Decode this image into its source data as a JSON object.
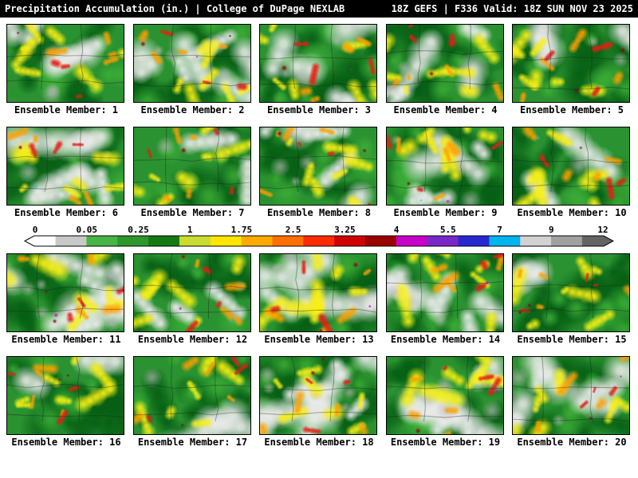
{
  "header": {
    "title_left": "Precipitation Accumulation (in.) | College of DuPage NEXLAB",
    "title_right": "18Z GEFS | F336 Valid: 18Z SUN NOV 23 2025"
  },
  "colorbar": {
    "ticks": [
      "0",
      "0.05",
      "0.25",
      "1",
      "1.75",
      "2.5",
      "3.25",
      "4",
      "5.5",
      "7",
      "9",
      "12"
    ],
    "colors": [
      "#ffffff",
      "#c8c8c8",
      "#46b446",
      "#2d962d",
      "#147814",
      "#c8dc32",
      "#ffe600",
      "#ffaa00",
      "#ff7000",
      "#ff2a00",
      "#d00000",
      "#9a0000",
      "#c800c8",
      "#7828c8",
      "#2828d2",
      "#00b4f0",
      "#d2d2d2",
      "#a0a0a0",
      "#646464"
    ]
  },
  "panels": [
    {
      "member": 1,
      "label": "Ensemble Member: 1"
    },
    {
      "member": 2,
      "label": "Ensemble Member: 2"
    },
    {
      "member": 3,
      "label": "Ensemble Member: 3"
    },
    {
      "member": 4,
      "label": "Ensemble Member: 4"
    },
    {
      "member": 5,
      "label": "Ensemble Member: 5"
    },
    {
      "member": 6,
      "label": "Ensemble Member: 6"
    },
    {
      "member": 7,
      "label": "Ensemble Member: 7"
    },
    {
      "member": 8,
      "label": "Ensemble Member: 8"
    },
    {
      "member": 9,
      "label": "Ensemble Member: 9"
    },
    {
      "member": 10,
      "label": "Ensemble Member: 10"
    },
    {
      "member": 11,
      "label": "Ensemble Member: 11"
    },
    {
      "member": 12,
      "label": "Ensemble Member: 12"
    },
    {
      "member": 13,
      "label": "Ensemble Member: 13"
    },
    {
      "member": 14,
      "label": "Ensemble Member: 14"
    },
    {
      "member": 15,
      "label": "Ensemble Member: 15"
    },
    {
      "member": 16,
      "label": "Ensemble Member: 16"
    },
    {
      "member": 17,
      "label": "Ensemble Member: 17"
    },
    {
      "member": 18,
      "label": "Ensemble Member: 18"
    },
    {
      "member": 19,
      "label": "Ensemble Member: 19"
    },
    {
      "member": 20,
      "label": "Ensemble Member: 20"
    }
  ],
  "chart_data": {
    "type": "heatmap",
    "title": "Precipitation Accumulation (in.)",
    "source": "College of DuPage NEXLAB",
    "model": "GEFS",
    "run": "18Z",
    "forecast_hour": "F336",
    "valid": "18Z SUN NOV 23 2025",
    "units": "inches",
    "colorbar_ticks": [
      0,
      0.05,
      0.25,
      1,
      1.75,
      2.5,
      3.25,
      4,
      5.5,
      7,
      9,
      12
    ],
    "ensemble_members": [
      1,
      2,
      3,
      4,
      5,
      6,
      7,
      8,
      9,
      10,
      11,
      12,
      13,
      14,
      15,
      16,
      17,
      18,
      19,
      20
    ],
    "legend_position": "center, between member rows 10 and 11",
    "note": "Each of the 20 panels is a 2D precipitation accumulation forecast field over the central US; individual gridded values are shown only by color shading, not numeric labels."
  }
}
